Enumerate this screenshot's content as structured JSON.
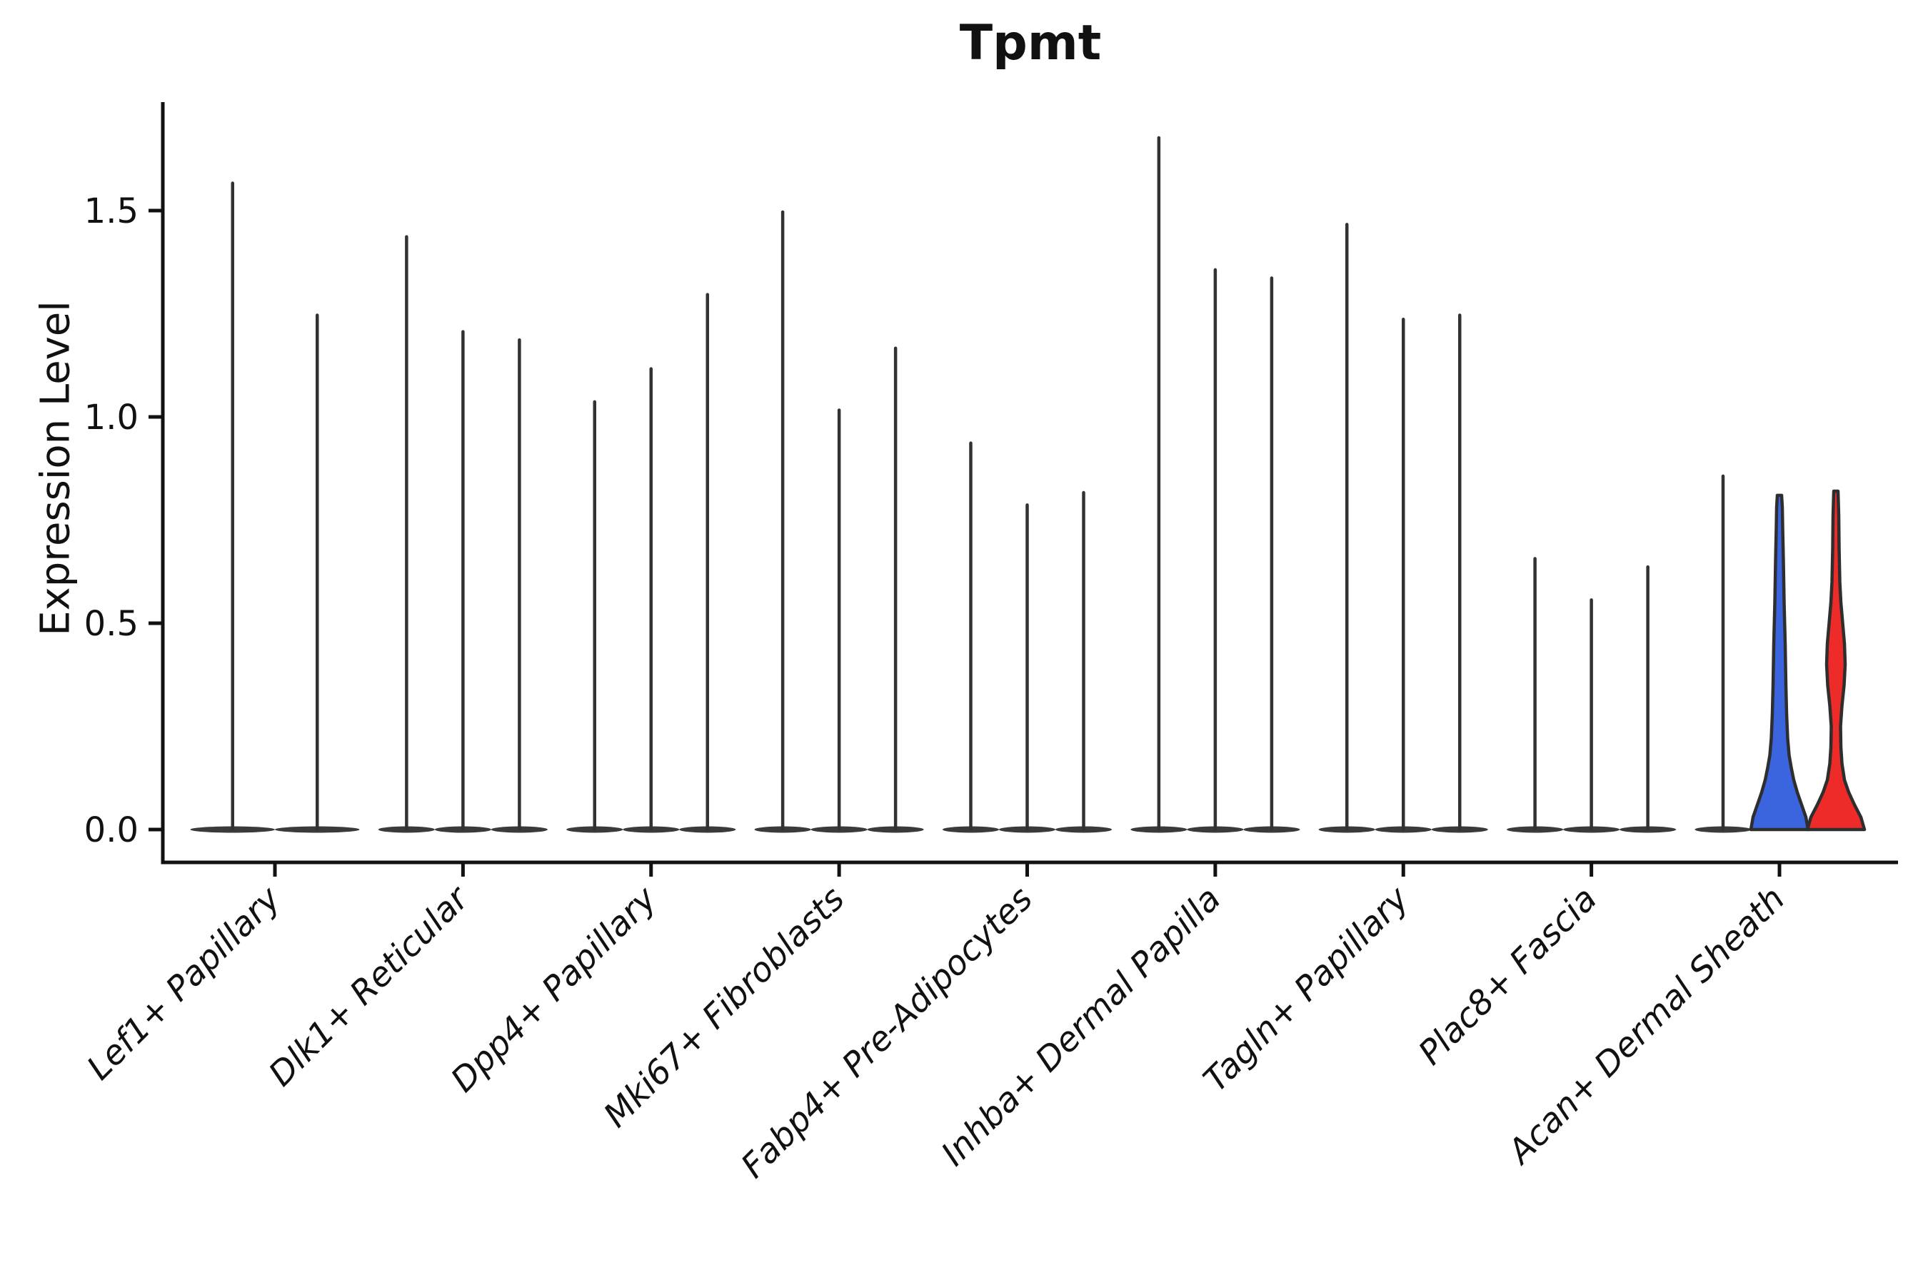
{
  "chart_data": {
    "type": "violin",
    "title": "Tpmt",
    "xlabel": "",
    "ylabel": "Expression Level",
    "yticks": [
      "0.0",
      "0.5",
      "1.0",
      "1.5"
    ],
    "ytick_values": [
      0.0,
      0.5,
      1.0,
      1.5
    ],
    "ylim": [
      0.0,
      1.86
    ],
    "grid": "off",
    "legend": "none",
    "categories": [
      "Lef1+ Papillary",
      "Dlk1+ Reticular",
      "Dpp4+ Papillary",
      "Mki67+ Fibroblasts",
      "Fabp4+ Pre-Adipocytes",
      "Inhba+ Dermal Papilla",
      "Tagln+ Papillary",
      "Plac8+ Fascia",
      "Acan+ Dermal Sheath"
    ],
    "groups": [
      {
        "category": "Lef1+ Papillary",
        "violins": [
          {
            "max": 1.57
          },
          {
            "max": 1.25
          }
        ]
      },
      {
        "category": "Dlk1+ Reticular",
        "violins": [
          {
            "max": 1.44
          },
          {
            "max": 1.21
          },
          {
            "max": 1.19
          }
        ]
      },
      {
        "category": "Dpp4+ Papillary",
        "violins": [
          {
            "max": 1.04
          },
          {
            "max": 1.12
          },
          {
            "max": 1.3
          }
        ]
      },
      {
        "category": "Mki67+ Fibroblasts",
        "violins": [
          {
            "max": 1.5
          },
          {
            "max": 1.02
          },
          {
            "max": 1.17
          }
        ]
      },
      {
        "category": "Fabp4+ Pre-Adipocytes",
        "violins": [
          {
            "max": 0.94
          },
          {
            "max": 0.79
          },
          {
            "max": 0.82
          }
        ]
      },
      {
        "category": "Inhba+ Dermal Papilla",
        "violins": [
          {
            "max": 1.68
          },
          {
            "max": 1.36
          },
          {
            "max": 1.34
          }
        ]
      },
      {
        "category": "Tagln+ Papillary",
        "violins": [
          {
            "max": 1.47
          },
          {
            "max": 1.24
          },
          {
            "max": 1.25
          }
        ]
      },
      {
        "category": "Plac8+ Fascia",
        "violins": [
          {
            "max": 0.66
          },
          {
            "max": 0.56
          },
          {
            "max": 0.64
          }
        ]
      },
      {
        "category": "Acan+ Dermal Sheath",
        "violins": [
          {
            "max": 0.86
          },
          {
            "max": 0.81,
            "fill": "#3B65DF",
            "profile": "blue"
          },
          {
            "max": 0.82,
            "fill": "#ED2B28",
            "profile": "red"
          }
        ]
      }
    ],
    "profiles": {
      "blue": [
        [
          0.0,
          80
        ],
        [
          0.03,
          74
        ],
        [
          0.06,
          62
        ],
        [
          0.09,
          50
        ],
        [
          0.12,
          40
        ],
        [
          0.15,
          33
        ],
        [
          0.18,
          27
        ],
        [
          0.22,
          23
        ],
        [
          0.28,
          20
        ],
        [
          0.35,
          18
        ],
        [
          0.45,
          16
        ],
        [
          0.55,
          13
        ],
        [
          0.65,
          11
        ],
        [
          0.73,
          9
        ],
        [
          0.78,
          8
        ],
        [
          0.81,
          6
        ]
      ],
      "red": [
        [
          0.0,
          80
        ],
        [
          0.03,
          70
        ],
        [
          0.06,
          52
        ],
        [
          0.09,
          36
        ],
        [
          0.12,
          24
        ],
        [
          0.16,
          17
        ],
        [
          0.2,
          14
        ],
        [
          0.25,
          13
        ],
        [
          0.3,
          17
        ],
        [
          0.35,
          23
        ],
        [
          0.4,
          26
        ],
        [
          0.45,
          24
        ],
        [
          0.5,
          19
        ],
        [
          0.55,
          14
        ],
        [
          0.6,
          11
        ],
        [
          0.68,
          9
        ],
        [
          0.76,
          8
        ],
        [
          0.82,
          6
        ]
      ]
    },
    "colors": {
      "spike": "#323232",
      "violin_outline": "#2E2E2E",
      "axis": "#111111",
      "split_blue": "#3B65DF",
      "split_red": "#ED2B28"
    }
  }
}
